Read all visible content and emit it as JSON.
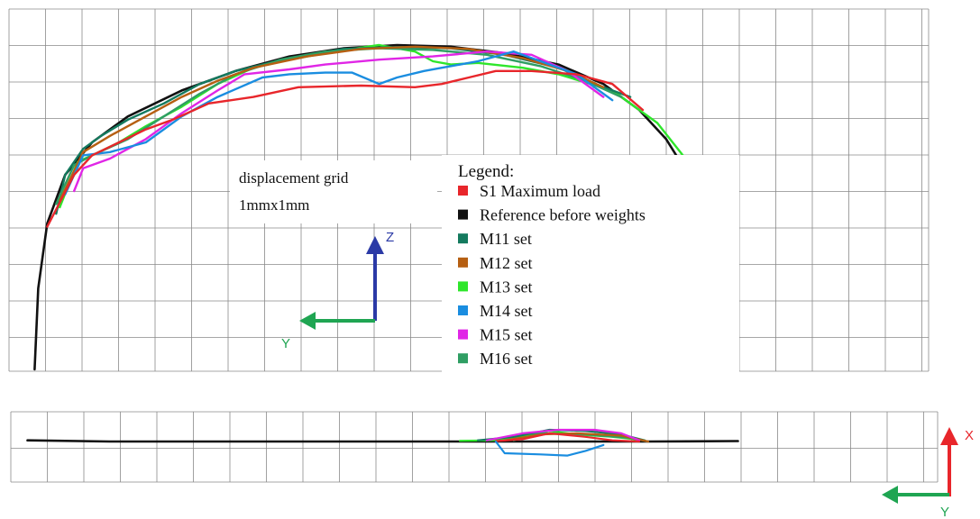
{
  "chart_data": [
    {
      "type": "line",
      "view": "Y-Z",
      "annotation": [
        "displacement grid",
        "1mmx1mm"
      ],
      "axes": {
        "vertical": "Z",
        "horizontal": "Y"
      },
      "grid": true,
      "grid_step_mm": 1,
      "legend": {
        "title": "Legend:",
        "placement": "center",
        "items": [
          {
            "key": "s1",
            "label": "S1 Maximum load",
            "color": "#e8262b"
          },
          {
            "key": "ref",
            "label": "Reference before weights",
            "color": "#111111"
          },
          {
            "key": "m11",
            "label": "M11 set",
            "color": "#147a5e"
          },
          {
            "key": "m12",
            "label": "M12 set",
            "color": "#b65f12"
          },
          {
            "key": "m13",
            "label": "M13 set",
            "color": "#2ee62b"
          },
          {
            "key": "m14",
            "label": "M14 set",
            "color": "#1a8de0"
          },
          {
            "key": "m15",
            "label": "M15 set",
            "color": "#e026e6"
          },
          {
            "key": "m16",
            "label": "M16 set",
            "color": "#2f9e63"
          }
        ]
      },
      "series": [
        {
          "key": "ref",
          "points": [
            [
              -24.2,
              10
            ],
            [
              -24.0,
              7.5
            ],
            [
              -23.5,
              5.5
            ],
            [
              -22.5,
              4.0
            ],
            [
              -21.0,
              3.0
            ],
            [
              -19.0,
              2.2
            ],
            [
              -16.0,
              1.4
            ],
            [
              -13.0,
              0.8
            ],
            [
              -10.0,
              0.35
            ],
            [
              -7.0,
              0.1
            ],
            [
              -4.0,
              0.0
            ],
            [
              -1.0,
              0.05
            ],
            [
              2.0,
              0.25
            ],
            [
              5.0,
              0.6
            ],
            [
              7.5,
              1.2
            ],
            [
              9.5,
              2.0
            ],
            [
              11.0,
              2.9
            ],
            [
              12.8,
              4.5
            ],
            [
              14.0,
              6.0
            ],
            [
              14.8,
              8.0
            ],
            [
              15.0,
              10
            ]
          ]
        },
        {
          "key": "s1",
          "points": [
            [
              -23.5,
              5.6
            ],
            [
              -22.0,
              4.0
            ],
            [
              -21.0,
              3.4
            ],
            [
              -19.5,
              3.0
            ],
            [
              -18.0,
              2.6
            ],
            [
              -16.5,
              2.3
            ],
            [
              -14.5,
              1.8
            ],
            [
              -12.0,
              1.6
            ],
            [
              -9.5,
              1.3
            ],
            [
              -6.0,
              1.25
            ],
            [
              -3.0,
              1.3
            ],
            [
              -1.5,
              1.2
            ],
            [
              0.0,
              1.0
            ],
            [
              1.5,
              0.8
            ],
            [
              3.5,
              0.8
            ],
            [
              6.0,
              0.9
            ],
            [
              8.0,
              1.2
            ],
            [
              9.7,
              2.0
            ]
          ]
        },
        {
          "key": "m11",
          "points": [
            [
              -23.0,
              5.2
            ],
            [
              -22.5,
              4.0
            ],
            [
              -21.5,
              3.2
            ],
            [
              -20.5,
              2.8
            ],
            [
              -19.0,
              2.3
            ],
            [
              -17.0,
              1.8
            ],
            [
              -15.0,
              1.2
            ],
            [
              -13.0,
              0.8
            ],
            [
              -10.0,
              0.4
            ],
            [
              -7.0,
              0.12
            ],
            [
              -4.0,
              0.06
            ],
            [
              -1.0,
              0.1
            ],
            [
              2.0,
              0.3
            ],
            [
              5.0,
              0.7
            ],
            [
              7.5,
              1.3
            ],
            [
              9.0,
              1.6
            ]
          ]
        },
        {
          "key": "m12",
          "points": [
            [
              -22.8,
              4.8
            ],
            [
              -21.5,
              3.3
            ],
            [
              -20.0,
              2.8
            ],
            [
              -18.0,
              2.2
            ],
            [
              -16.0,
              1.6
            ],
            [
              -14.0,
              1.1
            ],
            [
              -12.0,
              0.7
            ],
            [
              -9.0,
              0.35
            ],
            [
              -6.0,
              0.12
            ],
            [
              -3.0,
              0.05
            ],
            [
              0.0,
              0.12
            ],
            [
              3.0,
              0.4
            ],
            [
              5.5,
              0.8
            ],
            [
              7.5,
              1.3
            ]
          ]
        },
        {
          "key": "m13",
          "points": [
            [
              -22.8,
              5.0
            ],
            [
              -21.8,
              3.6
            ],
            [
              -21.0,
              3.4
            ],
            [
              -19.5,
              3.0
            ],
            [
              -18.0,
              2.5
            ],
            [
              -16.0,
              1.9
            ],
            [
              -14.0,
              1.2
            ],
            [
              -12.0,
              0.7
            ],
            [
              -10.0,
              0.45
            ],
            [
              -7.5,
              0.2
            ],
            [
              -5.0,
              0.0
            ],
            [
              -3.0,
              0.2
            ],
            [
              -2.0,
              0.5
            ],
            [
              -1.0,
              0.6
            ],
            [
              0.5,
              0.55
            ],
            [
              3.0,
              0.7
            ],
            [
              5.0,
              0.9
            ],
            [
              8.0,
              1.4
            ],
            [
              10.5,
              2.4
            ],
            [
              12.5,
              3.8
            ],
            [
              13.8,
              5.2
            ]
          ]
        },
        {
          "key": "m14",
          "points": [
            [
              -22.5,
              4.6
            ],
            [
              -21.5,
              3.4
            ],
            [
              -20.0,
              3.3
            ],
            [
              -18.0,
              3.0
            ],
            [
              -16.0,
              2.2
            ],
            [
              -14.0,
              1.6
            ],
            [
              -11.5,
              1.0
            ],
            [
              -10.0,
              0.9
            ],
            [
              -8.0,
              0.85
            ],
            [
              -6.5,
              0.85
            ],
            [
              -5.0,
              1.2
            ],
            [
              -4.0,
              1.0
            ],
            [
              -2.5,
              0.8
            ],
            [
              -1.5,
              0.7
            ],
            [
              0.5,
              0.5
            ],
            [
              2.5,
              0.2
            ],
            [
              4.0,
              0.5
            ],
            [
              6.0,
              0.9
            ],
            [
              8.0,
              1.7
            ]
          ]
        },
        {
          "key": "m15",
          "points": [
            [
              -22.0,
              4.5
            ],
            [
              -21.5,
              3.8
            ],
            [
              -20.0,
              3.5
            ],
            [
              -18.0,
              2.9
            ],
            [
              -16.0,
              2.1
            ],
            [
              -14.0,
              1.4
            ],
            [
              -12.5,
              0.9
            ],
            [
              -10.0,
              0.75
            ],
            [
              -8.0,
              0.6
            ],
            [
              -5.0,
              0.45
            ],
            [
              -2.0,
              0.35
            ],
            [
              1.0,
              0.2
            ],
            [
              3.5,
              0.3
            ],
            [
              5.5,
              0.8
            ],
            [
              7.5,
              1.6
            ]
          ]
        },
        {
          "key": "m16",
          "points": [
            [
              -23.0,
              4.9
            ],
            [
              -22.0,
              3.7
            ],
            [
              -21.0,
              3.4
            ],
            [
              -19.0,
              2.9
            ],
            [
              -17.0,
              2.2
            ],
            [
              -15.0,
              1.5
            ],
            [
              -13.0,
              0.9
            ],
            [
              -10.5,
              0.45
            ],
            [
              -8.0,
              0.2
            ],
            [
              -5.0,
              0.1
            ],
            [
              -2.0,
              0.15
            ],
            [
              1.0,
              0.3
            ],
            [
              4.0,
              0.65
            ],
            [
              6.5,
              1.1
            ],
            [
              8.5,
              1.6
            ]
          ]
        }
      ]
    },
    {
      "type": "line",
      "view": "X-Y",
      "axes": {
        "vertical": "X",
        "horizontal": "Y"
      },
      "grid": true,
      "grid_step_mm": 1,
      "series": [
        {
          "key": "ref",
          "points": [
            [
              -24.6,
              0.05
            ],
            [
              -20.0,
              0.0
            ],
            [
              -10.0,
              0.0
            ],
            [
              0.0,
              0.0
            ],
            [
              10.0,
              0.0
            ],
            [
              15.0,
              0.02
            ]
          ]
        },
        {
          "key": "s1",
          "points": [
            [
              1.5,
              0.02
            ],
            [
              3.0,
              0.1
            ],
            [
              4.5,
              0.35
            ],
            [
              6.5,
              0.2
            ],
            [
              8.0,
              0.05
            ],
            [
              9.5,
              0.0
            ]
          ]
        },
        {
          "key": "m11",
          "points": [
            [
              0.5,
              0.05
            ],
            [
              2.5,
              0.2
            ],
            [
              4.5,
              0.5
            ],
            [
              6.5,
              0.45
            ],
            [
              8.5,
              0.3
            ],
            [
              9.8,
              0.05
            ]
          ]
        },
        {
          "key": "m12",
          "points": [
            [
              2.0,
              0.05
            ],
            [
              4.0,
              0.3
            ],
            [
              6.0,
              0.35
            ],
            [
              8.5,
              0.25
            ],
            [
              10.0,
              0.0
            ]
          ]
        },
        {
          "key": "m13",
          "points": [
            [
              -0.5,
              0.03
            ],
            [
              1.5,
              0.05
            ],
            [
              3.0,
              0.25
            ],
            [
              4.5,
              0.45
            ],
            [
              6.0,
              0.3
            ],
            [
              8.0,
              0.2
            ],
            [
              9.8,
              0.05
            ]
          ]
        },
        {
          "key": "m14",
          "points": [
            [
              1.5,
              0.0
            ],
            [
              2.0,
              -0.5
            ],
            [
              4.0,
              -0.55
            ],
            [
              5.5,
              -0.6
            ],
            [
              6.5,
              -0.4
            ],
            [
              7.5,
              -0.15
            ]
          ]
        },
        {
          "key": "m15",
          "points": [
            [
              1.0,
              0.05
            ],
            [
              3.0,
              0.35
            ],
            [
              5.0,
              0.5
            ],
            [
              7.0,
              0.5
            ],
            [
              8.5,
              0.35
            ],
            [
              9.5,
              0.05
            ]
          ]
        },
        {
          "key": "m16",
          "points": [
            [
              2.5,
              0.05
            ],
            [
              4.0,
              0.35
            ],
            [
              6.5,
              0.3
            ],
            [
              9.0,
              0.15
            ],
            [
              10.0,
              0.0
            ]
          ]
        }
      ]
    }
  ]
}
